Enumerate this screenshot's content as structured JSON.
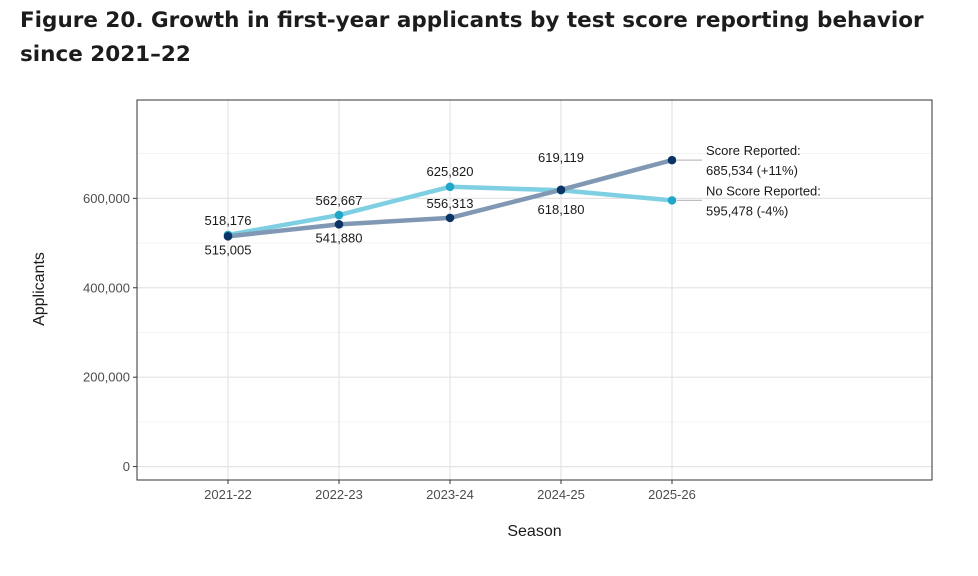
{
  "title": "Figure 20. Growth in first-year applicants by test score reporting behavior since 2021–22",
  "chart_data": {
    "type": "line",
    "xlabel": "Season",
    "ylabel": "Applicants",
    "categories": [
      "2021-22",
      "2022-23",
      "2023-24",
      "2024-25",
      "2025-26"
    ],
    "ylim": [
      -30000,
      820000
    ],
    "yticks": [
      0,
      200000,
      400000,
      600000
    ],
    "ytick_labels": [
      "0",
      "200,000",
      "400,000",
      "600,000"
    ],
    "grid": true,
    "series": [
      {
        "name": "No Score Reported",
        "color": "#7ecfe2",
        "point_color": "#21a6c8",
        "values": [
          518176,
          562667,
          625820,
          618180,
          595478
        ],
        "labels": [
          "518,176",
          "562,667",
          "625,820",
          "618,180",
          "595,478"
        ],
        "end_label_line1": "No Score Reported:",
        "end_label_line2": "595,478 (-4%)"
      },
      {
        "name": "Score Reported",
        "color": "#8098b4",
        "point_color": "#0a3465",
        "values": [
          515005,
          541880,
          556313,
          619119,
          685534
        ],
        "labels": [
          "515,005",
          "541,880",
          "556,313",
          "619,119",
          "685,534"
        ],
        "end_label_line1": "Score Reported:",
        "end_label_line2": "685,534 (+11%)"
      }
    ]
  }
}
